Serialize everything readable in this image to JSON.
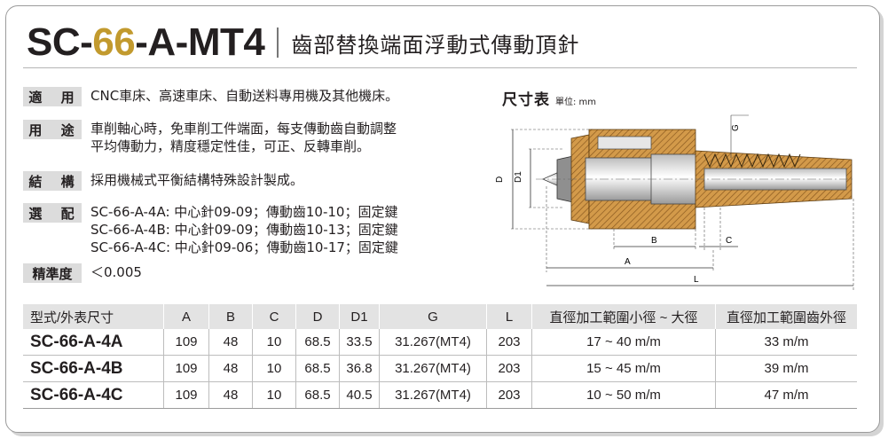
{
  "header": {
    "model_prefix": "SC-",
    "model_accent": "66",
    "model_suffix": "-A-MT4",
    "subtitle": "齒部替換端面浮動式傳動頂針"
  },
  "specs": {
    "application_label": "適 用",
    "application_text": "CNC車床、高速車床、自動送料專用機及其他機床。",
    "purpose_label": "用 途",
    "purpose_lines": [
      "車削軸心時，免車削工件端面，每支傳動齒自動調整",
      "平均傳動力，精度穩定性佳，可正、反轉車削。"
    ],
    "structure_label": "結 構",
    "structure_text": "採用機械式平衡結構特殊設計製成。",
    "options_label": "選 配",
    "options_lines": [
      "SC-66-A-4A: 中心針09-09；傳動齒10-10；固定鍵",
      "SC-66-A-4B: 中心針09-09；傳動齒10-13；固定鍵",
      "SC-66-A-4C: 中心針09-06；傳動齒10-17；固定鍵"
    ],
    "precision_label": "精準度",
    "precision_text": "＜0.005"
  },
  "dimensions": {
    "title": "尺寸表",
    "unit": "單位: mm",
    "labels": {
      "G": "G",
      "D": "D",
      "D1": "D1",
      "B": "B",
      "C": "C",
      "A": "A",
      "L": "L"
    }
  },
  "table": {
    "headers": [
      "型式/外表尺寸",
      "A",
      "B",
      "C",
      "D",
      "D1",
      "G",
      "L",
      "直徑加工範圍小徑 ~ 大徑",
      "直徑加工範圍齒外徑"
    ],
    "rows": [
      [
        "SC-66-A-4A",
        "109",
        "48",
        "10",
        "68.5",
        "33.5",
        "31.267(MT4)",
        "203",
        "17 ~ 40 m/m",
        "33 m/m"
      ],
      [
        "SC-66-A-4B",
        "109",
        "48",
        "10",
        "68.5",
        "36.8",
        "31.267(MT4)",
        "203",
        "15 ~ 45 m/m",
        "39 m/m"
      ],
      [
        "SC-66-A-4C",
        "109",
        "48",
        "10",
        "68.5",
        "40.5",
        "31.267(MT4)",
        "203",
        "10 ~ 50 m/m",
        "47 m/m"
      ]
    ]
  },
  "colors": {
    "accent": "#c29a2e",
    "label_bg": "#dcdcdc",
    "header_bg": "#e3e3e3"
  }
}
